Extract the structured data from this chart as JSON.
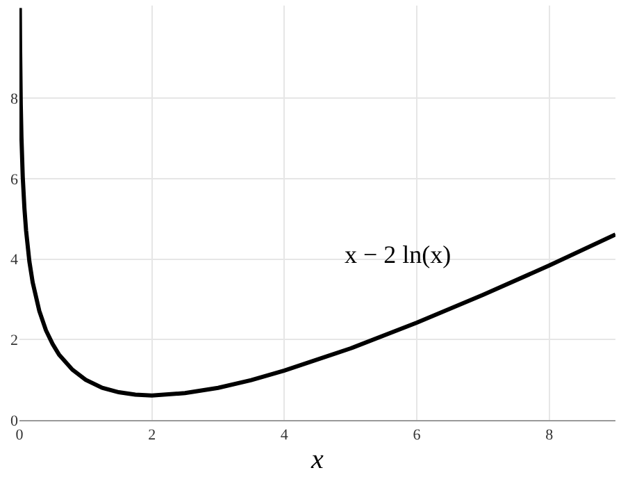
{
  "chart_data": {
    "type": "line",
    "xlabel": "x",
    "annotations": [
      "x − 2 ln(x)"
    ],
    "x": [
      0.006,
      0.01,
      0.02,
      0.03,
      0.05,
      0.075,
      0.1,
      0.15,
      0.2,
      0.3,
      0.4,
      0.5,
      0.6,
      0.8,
      1,
      1.25,
      1.5,
      1.75,
      2,
      2.5,
      3,
      3.5,
      4,
      5,
      6,
      7,
      8,
      9
    ],
    "series": [
      {
        "color": "#000000",
        "values": [
          10.24,
          9.22,
          7.84,
          7.04,
          6.04,
          5.26,
          4.71,
          3.94,
          3.42,
          2.71,
          2.23,
          1.89,
          1.62,
          1.25,
          1,
          0.8,
          0.69,
          0.63,
          0.61,
          0.67,
          0.8,
          0.99,
          1.23,
          1.78,
          2.42,
          3.11,
          3.84,
          4.61
        ]
      }
    ],
    "xlim": [
      0,
      9
    ],
    "ylim": [
      0,
      10.3
    ],
    "xticks": [
      0,
      2,
      4,
      6,
      8
    ],
    "yticks": [
      0,
      2,
      4,
      6,
      8
    ],
    "grid": true,
    "marker": "none",
    "line_style": "solid"
  }
}
